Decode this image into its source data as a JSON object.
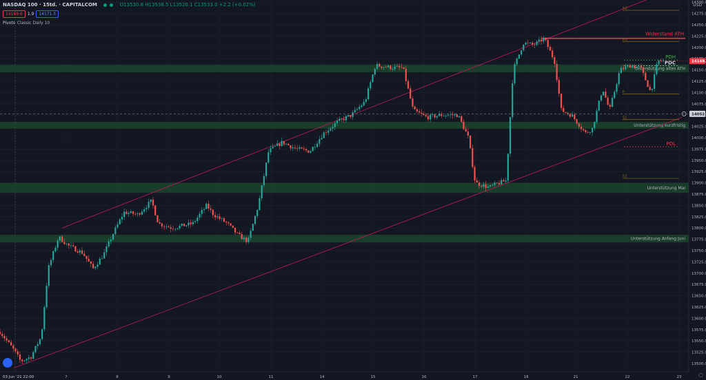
{
  "header": {
    "symbol": "NASDAQ 100",
    "interval": "15td.",
    "source": "CAPITALCOM",
    "ohlc_text": "O13530.8 H13538.5 L13520.1 C13533.0 +2.2 (+0.02%)",
    "sell_price": "14169.6",
    "spread": "1.9",
    "buy_price": "14171.5",
    "indicator": "Pivots",
    "indicator_params": "Classic Daily 10",
    "currency": "USD"
  },
  "colors": {
    "background": "#131722",
    "grid": "#1e222d",
    "up": "#26a69a",
    "down": "#ef5350",
    "zone": "#1d4a2e",
    "channel": "#c2185b",
    "resistance": "#f23645",
    "pivot": "#8a6d1e",
    "pdh": "#4caf50",
    "price_tag": "#f23645",
    "crosshair_tag": "#363a45"
  },
  "chart_data": {
    "type": "candlestick",
    "y_ticks": [
      13500,
      13525,
      13550,
      13575,
      13600,
      13625,
      13650,
      13675,
      13700,
      13725,
      13750,
      13775,
      13800,
      13825,
      13850,
      13875,
      13900,
      13925,
      13950,
      13975,
      14000,
      14025,
      14050,
      14075,
      14100,
      14125,
      14150,
      14175,
      14200,
      14225,
      14250,
      14275,
      14300
    ],
    "x_ticks": [
      "03 Jun '21  22:00",
      "7",
      "8",
      "9",
      "10",
      "11",
      "14",
      "15",
      "16",
      "17",
      "18",
      "21",
      "22",
      "23"
    ],
    "current_price": "14169.6",
    "crosshair_price": "14052.8",
    "zones": [
      {
        "label": "Unterstützung altes ATH",
        "low": 14145,
        "high": 14162
      },
      {
        "label": "Unterstützung kurzfristig",
        "low": 14020,
        "high": 14035
      },
      {
        "label": "Unterstützung Mai",
        "low": 13878,
        "high": 13900
      },
      {
        "label": "Unterstützung Anfang Juni",
        "low": 13768,
        "high": 13785
      }
    ],
    "resistance": {
      "label": "Widerstand ATH",
      "value": 14220
    },
    "levels": [
      {
        "label": "PDH",
        "value": 14172
      },
      {
        "label": "PDC",
        "value": 14159
      },
      {
        "label": "PDL",
        "value": 13980
      }
    ],
    "pivots": [
      {
        "label": "R2",
        "value": 14282
      },
      {
        "label": "R1",
        "value": 14213
      },
      {
        "label": "P",
        "value": 14097
      },
      {
        "label": "S1",
        "value": 14040
      },
      {
        "label": "S2",
        "value": 13910
      }
    ],
    "channel": {
      "upper": [
        [
          0.09,
          13800
        ],
        [
          0.95,
          14312
        ]
      ],
      "lower": [
        [
          0.02,
          13490
        ],
        [
          0.99,
          14045
        ]
      ]
    },
    "candle_count": 300,
    "price_path": [
      [
        0,
        13570
      ],
      [
        0.02,
        13530
      ],
      [
        0.03,
        13505
      ],
      [
        0.045,
        13515
      ],
      [
        0.06,
        13560
      ],
      [
        0.07,
        13710
      ],
      [
        0.085,
        13780
      ],
      [
        0.1,
        13760
      ],
      [
        0.12,
        13745
      ],
      [
        0.135,
        13710
      ],
      [
        0.15,
        13740
      ],
      [
        0.165,
        13790
      ],
      [
        0.18,
        13835
      ],
      [
        0.2,
        13830
      ],
      [
        0.22,
        13860
      ],
      [
        0.23,
        13810
      ],
      [
        0.25,
        13800
      ],
      [
        0.28,
        13810
      ],
      [
        0.3,
        13850
      ],
      [
        0.31,
        13830
      ],
      [
        0.33,
        13810
      ],
      [
        0.345,
        13785
      ],
      [
        0.36,
        13770
      ],
      [
        0.375,
        13850
      ],
      [
        0.39,
        13970
      ],
      [
        0.41,
        13990
      ],
      [
        0.43,
        13975
      ],
      [
        0.45,
        13970
      ],
      [
        0.47,
        14010
      ],
      [
        0.49,
        14035
      ],
      [
        0.51,
        14050
      ],
      [
        0.53,
        14080
      ],
      [
        0.545,
        14160
      ],
      [
        0.57,
        14155
      ],
      [
        0.585,
        14155
      ],
      [
        0.6,
        14060
      ],
      [
        0.62,
        14045
      ],
      [
        0.64,
        14050
      ],
      [
        0.665,
        14050
      ],
      [
        0.68,
        14000
      ],
      [
        0.69,
        13900
      ],
      [
        0.71,
        13890
      ],
      [
        0.725,
        13900
      ],
      [
        0.735,
        13905
      ],
      [
        0.745,
        14150
      ],
      [
        0.76,
        14210
      ],
      [
        0.775,
        14205
      ],
      [
        0.79,
        14220
      ],
      [
        0.805,
        14170
      ],
      [
        0.815,
        14060
      ],
      [
        0.83,
        14050
      ],
      [
        0.85,
        14010
      ],
      [
        0.86,
        14020
      ],
      [
        0.875,
        14110
      ],
      [
        0.885,
        14060
      ],
      [
        0.9,
        14150
      ],
      [
        0.915,
        14160
      ],
      [
        0.93,
        14155
      ],
      [
        0.945,
        14100
      ],
      [
        0.955,
        14170
      ],
      [
        0.963,
        14169.6
      ]
    ]
  }
}
